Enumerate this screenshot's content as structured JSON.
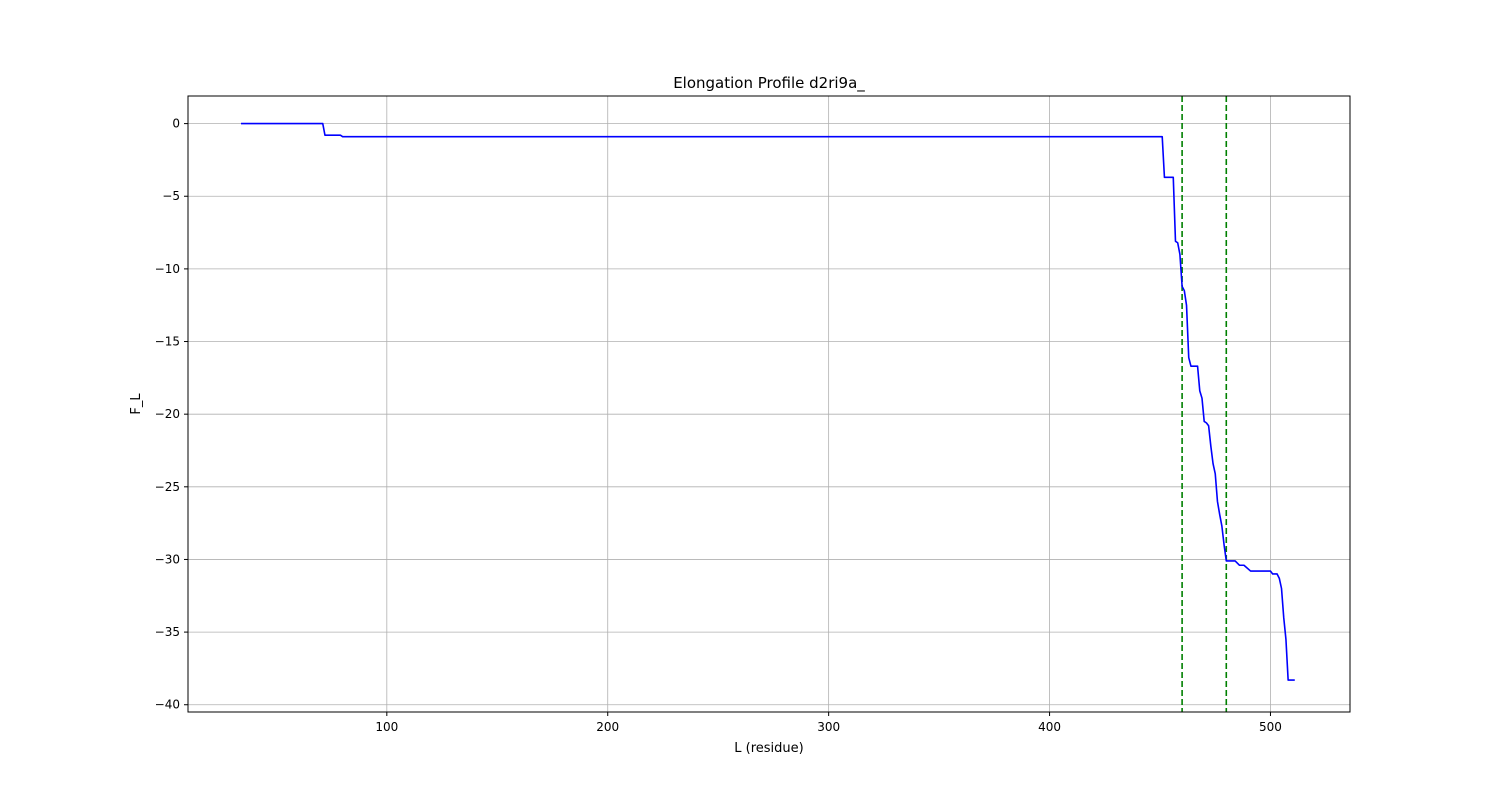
{
  "chart_data": {
    "type": "line",
    "title": "Elongation Profile d2ri9a_",
    "xlabel": "L (residue)",
    "ylabel": "F_L",
    "xlim": [
      10,
      536
    ],
    "ylim": [
      -40.5,
      1.9
    ],
    "grid": true,
    "x_ticks": [
      100,
      200,
      300,
      400,
      500
    ],
    "y_ticks": [
      0,
      -5,
      -10,
      -15,
      -20,
      -25,
      -30,
      -35,
      -40
    ],
    "x_tick_labels": [
      "100",
      "200",
      "300",
      "400",
      "500"
    ],
    "y_tick_labels": [
      "0",
      "−5",
      "−10",
      "−15",
      "−20",
      "−25",
      "−30",
      "−35",
      "−40"
    ],
    "line_color": "#0000ff",
    "vline_color": "#008000",
    "vlines": [
      460,
      480
    ],
    "series": [
      {
        "x": [
          34,
          71,
          72,
          79,
          80,
          451,
          452,
          453,
          456,
          457,
          458,
          459,
          460,
          461,
          462,
          463,
          464,
          467,
          468,
          469,
          470,
          471,
          472,
          473,
          474,
          475,
          476,
          477,
          478,
          479,
          480,
          483,
          484,
          486,
          487,
          488,
          491,
          492,
          500,
          501,
          503,
          504,
          505,
          506,
          507,
          508,
          511
        ],
        "y": [
          0,
          0,
          -0.8,
          -0.8,
          -0.9,
          -0.9,
          -3.7,
          -3.7,
          -3.7,
          -8.1,
          -8.2,
          -9.0,
          -11.2,
          -11.5,
          -12.5,
          -16.1,
          -16.7,
          -16.7,
          -18.4,
          -18.9,
          -20.5,
          -20.6,
          -20.8,
          -22.2,
          -23.4,
          -24.1,
          -26.0,
          -26.9,
          -27.7,
          -29.0,
          -30.1,
          -30.1,
          -30.1,
          -30.4,
          -30.4,
          -30.4,
          -30.8,
          -30.8,
          -30.8,
          -31.0,
          -31.0,
          -31.3,
          -32.0,
          -34.0,
          -35.5,
          -38.3,
          -38.3
        ]
      }
    ]
  }
}
